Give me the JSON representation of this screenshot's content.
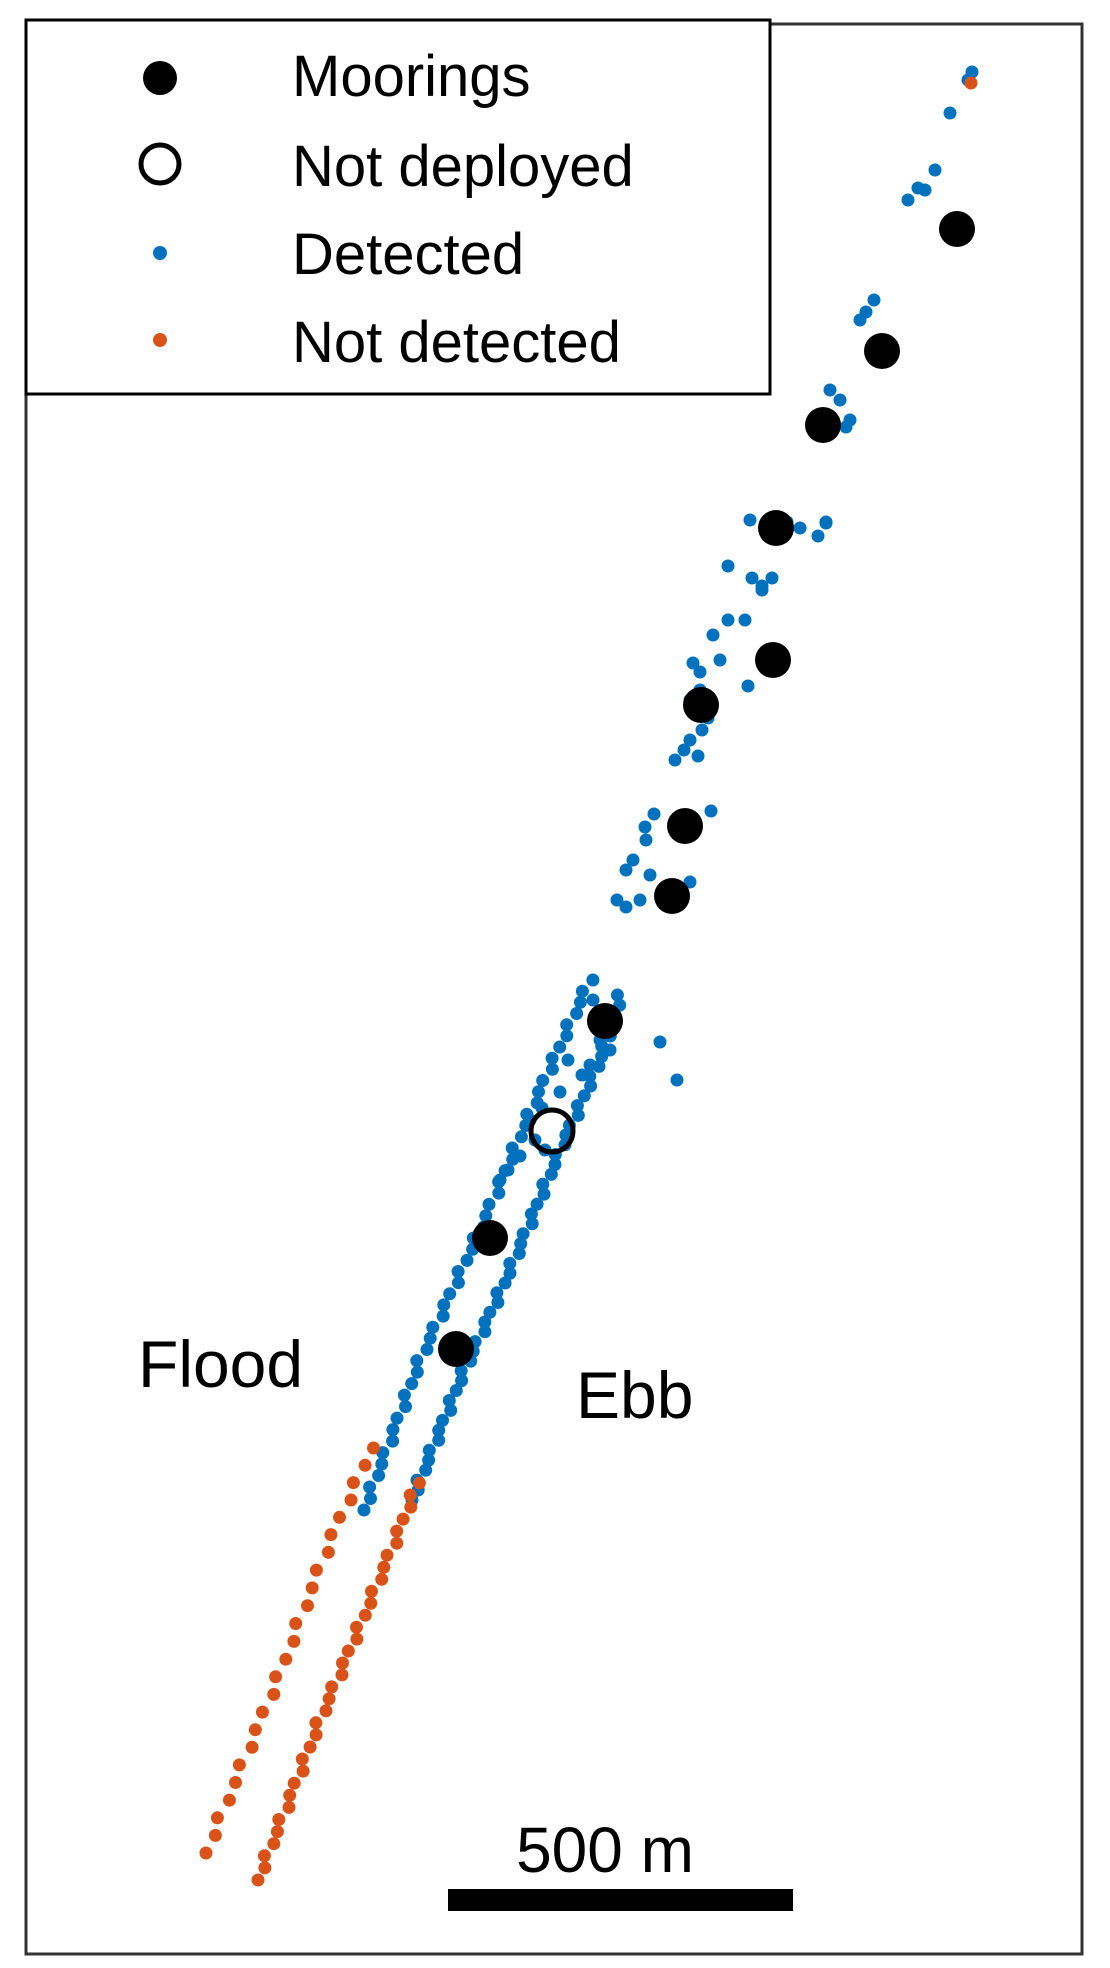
{
  "legend": {
    "placement": "top-left",
    "items": [
      {
        "label": "Moorings",
        "marker": "filled-circle",
        "color": "#000000"
      },
      {
        "label": "Not deployed",
        "marker": "open-circle",
        "color": "#000000"
      },
      {
        "label": "Detected",
        "marker": "small-dot",
        "color": "#0072BD"
      },
      {
        "label": "Not detected",
        "marker": "small-dot",
        "color": "#D95319"
      }
    ]
  },
  "annotations": {
    "flood": "Flood",
    "ebb": "Ebb"
  },
  "scale_bar": {
    "label": "500 m",
    "length_m": 500
  },
  "colors": {
    "detected": "#0072BD",
    "not_detected": "#D95319",
    "mooring": "#000000"
  }
}
